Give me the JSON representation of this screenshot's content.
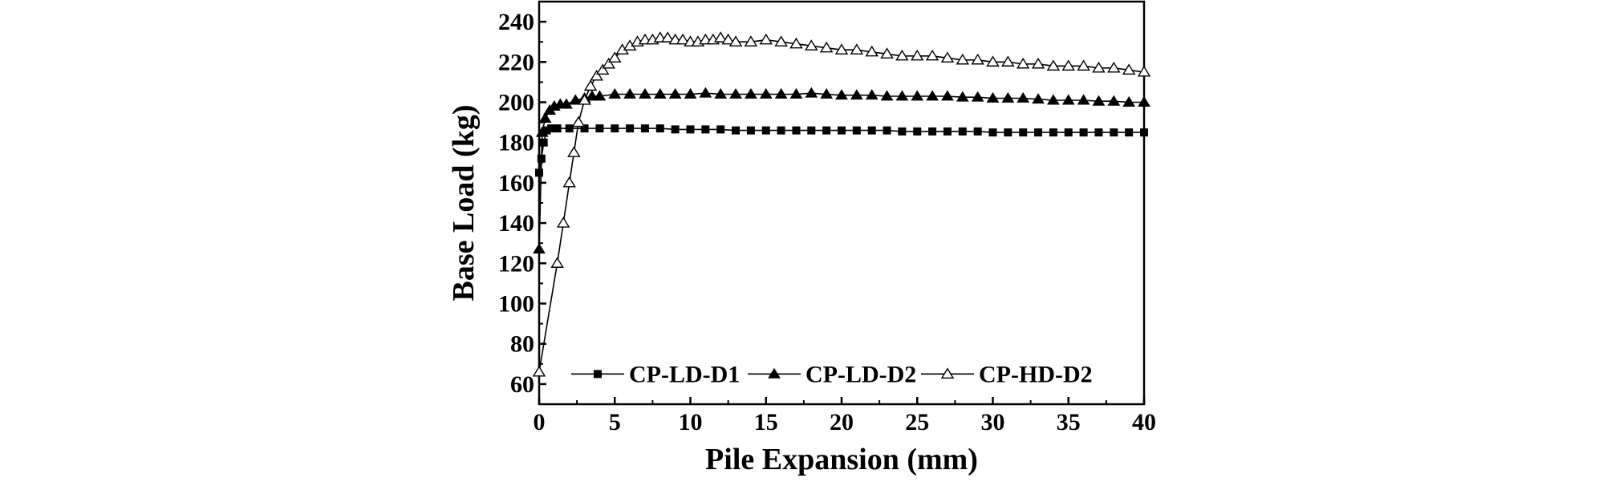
{
  "chart_data": {
    "type": "line",
    "title": "",
    "xlabel": "Pile Expansion (mm)",
    "ylabel": "Base Load (kg)",
    "xlim": [
      0,
      40
    ],
    "ylim": [
      50,
      250
    ],
    "xticks": [
      "0",
      "5",
      "10",
      "15",
      "20",
      "25",
      "30",
      "35",
      "40"
    ],
    "yticks": [
      "60",
      "80",
      "100",
      "120",
      "140",
      "160",
      "180",
      "200",
      "220",
      "240"
    ],
    "grid": false,
    "legend_position": "bottom-center",
    "series": [
      {
        "name": "CP-LD-D1",
        "marker": "filled-square",
        "color": "#000000",
        "x": [
          0,
          0.15,
          0.3,
          0.5,
          0.8,
          1.2,
          2,
          3,
          4,
          5,
          6,
          7,
          8,
          9,
          10,
          11,
          12,
          13,
          14,
          15,
          16,
          17,
          18,
          19,
          20,
          21,
          22,
          23,
          24,
          25,
          26,
          27,
          28,
          29,
          30,
          31,
          32,
          33,
          34,
          35,
          36,
          37,
          38,
          39,
          40
        ],
        "y": [
          165,
          172,
          180,
          186,
          187,
          187,
          187,
          187,
          187,
          187,
          187,
          187,
          187,
          186.5,
          186.5,
          186.5,
          186.5,
          186,
          186,
          186,
          186,
          186,
          186,
          186,
          186,
          186,
          186,
          186,
          185.5,
          185.5,
          185.5,
          185.5,
          185.5,
          185.5,
          185,
          185,
          185,
          185,
          185,
          185,
          185,
          185,
          185,
          185,
          185
        ]
      },
      {
        "name": "CP-LD-D2",
        "marker": "filled-triangle",
        "color": "#000000",
        "x": [
          0,
          0.2,
          0.4,
          0.7,
          1,
          1.4,
          1.8,
          2.4,
          3,
          3.5,
          4,
          5,
          6,
          7,
          8,
          9,
          10,
          11,
          12,
          13,
          14,
          15,
          16,
          17,
          18,
          19,
          20,
          21,
          22,
          23,
          24,
          25,
          26,
          27,
          28,
          29,
          30,
          31,
          32,
          33,
          34,
          35,
          36,
          37,
          38,
          39,
          40
        ],
        "y": [
          127,
          185,
          192,
          196,
          198,
          199,
          199,
          201,
          202,
          203,
          203,
          204,
          204,
          204,
          204,
          204,
          204,
          204.5,
          204,
          204,
          204,
          204,
          204,
          204,
          204.5,
          204,
          203.5,
          203.5,
          203.5,
          203,
          203,
          203,
          203,
          203,
          202.5,
          202.5,
          202,
          202,
          202,
          201.5,
          201,
          201,
          201,
          200.5,
          200.5,
          200,
          200
        ]
      },
      {
        "name": "CP-HD-D2",
        "marker": "open-triangle",
        "color": "#000000",
        "x": [
          0,
          1.2,
          1.6,
          2,
          2.3,
          2.6,
          3,
          3.4,
          3.8,
          4.2,
          4.6,
          5,
          5.5,
          6,
          6.5,
          7,
          7.5,
          8,
          8.5,
          9,
          9.5,
          10,
          10.5,
          11,
          11.5,
          12,
          12.5,
          13,
          14,
          15,
          16,
          17,
          18,
          19,
          20,
          21,
          22,
          23,
          24,
          25,
          26,
          27,
          28,
          29,
          30,
          31,
          32,
          33,
          34,
          35,
          36,
          37,
          38,
          39,
          40
        ],
        "y": [
          66,
          120,
          140,
          160,
          175,
          190,
          201,
          208,
          213,
          216,
          219,
          222,
          226,
          228,
          230,
          231,
          231,
          232,
          232,
          231,
          231,
          230,
          230,
          231,
          231,
          232,
          231,
          230,
          230,
          231,
          230,
          229,
          228,
          227,
          226,
          226,
          225,
          224,
          223,
          223,
          223,
          222,
          221,
          221,
          220,
          220,
          219,
          219,
          218,
          218,
          218,
          217,
          217,
          216,
          215
        ]
      }
    ]
  }
}
